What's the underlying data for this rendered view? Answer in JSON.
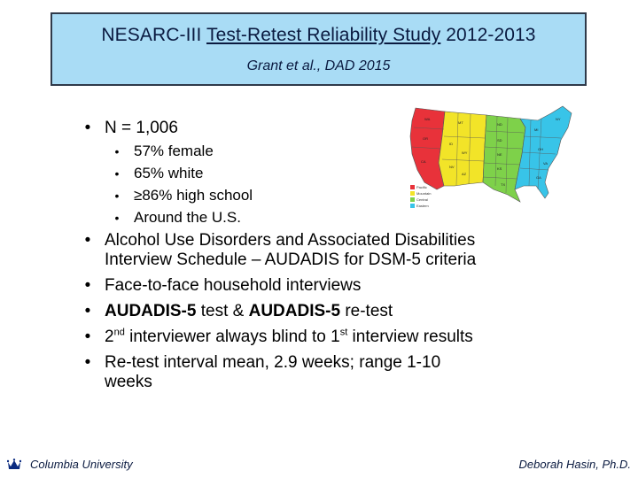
{
  "header": {
    "title_prefix": "NESARC-III ",
    "title_underlined": "Test-Retest Reliability Study",
    "title_suffix": " 2012-2013",
    "subtitle": "Grant et al., DAD 2015"
  },
  "bullets": {
    "n": "N = 1,006",
    "sub": [
      "57% female",
      "65% white",
      "≥86% high school",
      "Around the U.S."
    ],
    "audadis_line1": "Alcohol Use Disorders and Associated Disabilities",
    "audadis_line2": "Interview Schedule – AUDADIS for DSM-5 criteria",
    "face": "Face-to-face household interviews",
    "test_a": "AUDADIS-5",
    "test_b": " test & ",
    "test_c": "AUDADIS-5",
    "test_d": " re-test",
    "second_a": "2",
    "second_sup1": "nd",
    "second_b": " interviewer always blind to 1",
    "second_sup2": "st",
    "second_c": " interview results",
    "retest_line1": "Re-test interval mean, 2.9 weeks; range 1-10",
    "retest_line2": "weeks"
  },
  "map": {
    "regions": [
      {
        "name": "Pacific",
        "color": "#e8323a"
      },
      {
        "name": "Mountain",
        "color": "#f2e428"
      },
      {
        "name": "Central",
        "color": "#7ed14a"
      },
      {
        "name": "Eastern",
        "color": "#38c4e8"
      }
    ]
  },
  "footer": {
    "left": "Columbia University",
    "right": "Deborah Hasin, Ph.D."
  }
}
